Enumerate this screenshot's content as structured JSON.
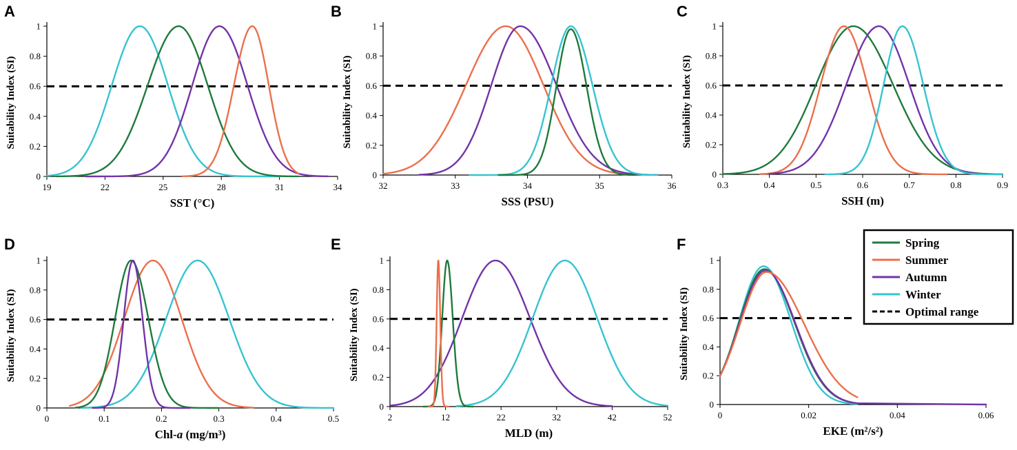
{
  "colors": {
    "Spring": "#1e7a3c",
    "Summer": "#ec6f4a",
    "Autumn": "#7233a8",
    "Winter": "#36c3d0",
    "optimal": "#000000"
  },
  "legend": {
    "items": [
      {
        "key": "Spring",
        "label": "Spring"
      },
      {
        "key": "Summer",
        "label": "Summer"
      },
      {
        "key": "Autumn",
        "label": "Autumn"
      },
      {
        "key": "Winter",
        "label": "Winter"
      },
      {
        "key": "optimal",
        "label": "Optimal range"
      }
    ]
  },
  "chart_data": [
    {
      "type": "line",
      "panel": "A",
      "xlabel": "SST (°C)",
      "ylabel": "Suitability Index (SI)",
      "xlim": [
        19,
        34
      ],
      "ylim": [
        0,
        1
      ],
      "xticks": [
        {
          "v": 19,
          "label": "19"
        },
        {
          "v": 22,
          "label": "22"
        },
        {
          "v": 25,
          "label": "25"
        },
        {
          "v": 28,
          "label": "28"
        },
        {
          "v": 31,
          "label": "31"
        },
        {
          "v": 34,
          "label": "34"
        }
      ],
      "yticks": [
        {
          "v": 0,
          "label": "0"
        },
        {
          "v": 0.2,
          "label": "0.2"
        },
        {
          "v": 0.4,
          "label": "0.4"
        },
        {
          "v": 0.6,
          "label": "0.6"
        },
        {
          "v": 0.8,
          "label": "0.8"
        },
        {
          "v": 1,
          "label": "1"
        }
      ],
      "optimal_si": 0.6,
      "series": [
        {
          "name": "Winter",
          "peak_x": 23.8,
          "peak_y": 1.0,
          "sd_left": 1.45,
          "sd_right": 1.45,
          "x_start": 19,
          "x_end": 31
        },
        {
          "name": "Spring",
          "peak_x": 25.8,
          "peak_y": 1.0,
          "sd_left": 1.6,
          "sd_right": 1.5,
          "x_start": 19.5,
          "x_end": 32
        },
        {
          "name": "Autumn",
          "peak_x": 27.9,
          "peak_y": 1.0,
          "sd_left": 1.4,
          "sd_right": 1.45,
          "x_start": 21,
          "x_end": 33.5
        },
        {
          "name": "Summer",
          "peak_x": 29.6,
          "peak_y": 1.0,
          "sd_left": 0.95,
          "sd_right": 0.85,
          "x_start": 26,
          "x_end": 32
        }
      ]
    },
    {
      "type": "line",
      "panel": "B",
      "xlabel": "SSS (PSU)",
      "ylabel": "Suitability Index (SI)",
      "xlim": [
        32,
        36
      ],
      "ylim": [
        0,
        1
      ],
      "xticks": [
        {
          "v": 32,
          "label": "32"
        },
        {
          "v": 33,
          "label": "33"
        },
        {
          "v": 34,
          "label": "34"
        },
        {
          "v": 35,
          "label": "35"
        },
        {
          "v": 36,
          "label": "36"
        }
      ],
      "yticks": [
        {
          "v": 0,
          "label": "0"
        },
        {
          "v": 0.2,
          "label": "0.2"
        },
        {
          "v": 0.4,
          "label": "0.4"
        },
        {
          "v": 0.6,
          "label": "0.6"
        },
        {
          "v": 0.8,
          "label": "0.8"
        },
        {
          "v": 1,
          "label": "1"
        }
      ],
      "optimal_si": 0.6,
      "series": [
        {
          "name": "Summer",
          "peak_x": 33.7,
          "peak_y": 1.0,
          "sd_left": 0.55,
          "sd_right": 0.52,
          "x_start": 32,
          "x_end": 35.5
        },
        {
          "name": "Autumn",
          "peak_x": 33.9,
          "peak_y": 1.0,
          "sd_left": 0.4,
          "sd_right": 0.5,
          "x_start": 32.5,
          "x_end": 35.8
        },
        {
          "name": "Winter",
          "peak_x": 34.6,
          "peak_y": 1.0,
          "sd_left": 0.27,
          "sd_right": 0.3,
          "x_start": 33.2,
          "x_end": 35.8
        },
        {
          "name": "Spring",
          "peak_x": 34.6,
          "peak_y": 0.98,
          "sd_left": 0.2,
          "sd_right": 0.22,
          "x_start": 33.6,
          "x_end": 35.5
        }
      ]
    },
    {
      "type": "line",
      "panel": "C",
      "xlabel": "SSH (m)",
      "ylabel": "Suitability Index (SI)",
      "xlim": [
        0.3,
        0.9
      ],
      "ylim": [
        0,
        1
      ],
      "xticks": [
        {
          "v": 0.3,
          "label": "0.3"
        },
        {
          "v": 0.4,
          "label": "0.4"
        },
        {
          "v": 0.5,
          "label": "0.5"
        },
        {
          "v": 0.6,
          "label": "0.6"
        },
        {
          "v": 0.7,
          "label": "0.7"
        },
        {
          "v": 0.8,
          "label": "0.8"
        },
        {
          "v": 0.9,
          "label": "0.9"
        }
      ],
      "yticks": [
        {
          "v": 0,
          "label": "0"
        },
        {
          "v": 0.2,
          "label": "0.2"
        },
        {
          "v": 0.4,
          "label": "0.4"
        },
        {
          "v": 0.6,
          "label": "0.6"
        },
        {
          "v": 0.8,
          "label": "0.8"
        },
        {
          "v": 1,
          "label": "1"
        }
      ],
      "optimal_si": 0.6,
      "series": [
        {
          "name": "Spring",
          "peak_x": 0.58,
          "peak_y": 1.0,
          "sd_left": 0.08,
          "sd_right": 0.085,
          "x_start": 0.3,
          "x_end": 0.9
        },
        {
          "name": "Summer",
          "peak_x": 0.56,
          "peak_y": 1.0,
          "sd_left": 0.05,
          "sd_right": 0.05,
          "x_start": 0.38,
          "x_end": 0.78
        },
        {
          "name": "Autumn",
          "peak_x": 0.635,
          "peak_y": 1.0,
          "sd_left": 0.07,
          "sd_right": 0.065,
          "x_start": 0.4,
          "x_end": 0.9
        },
        {
          "name": "Winter",
          "peak_x": 0.685,
          "peak_y": 1.0,
          "sd_left": 0.04,
          "sd_right": 0.045,
          "x_start": 0.52,
          "x_end": 0.9
        }
      ]
    },
    {
      "type": "line",
      "panel": "D",
      "xlabel": "Chl-a (mg/m³)",
      "ylabel": "Suitability Index (SI)",
      "xlim": [
        0,
        0.5
      ],
      "ylim": [
        0,
        1
      ],
      "xticks": [
        {
          "v": 0,
          "label": "0"
        },
        {
          "v": 0.1,
          "label": "0.1"
        },
        {
          "v": 0.2,
          "label": "0.2"
        },
        {
          "v": 0.3,
          "label": "0.3"
        },
        {
          "v": 0.4,
          "label": "0.4"
        },
        {
          "v": 0.5,
          "label": "0.5"
        }
      ],
      "yticks": [
        {
          "v": 0,
          "label": "0"
        },
        {
          "v": 0.2,
          "label": "0.2"
        },
        {
          "v": 0.4,
          "label": "0.4"
        },
        {
          "v": 0.6,
          "label": "0.6"
        },
        {
          "v": 0.8,
          "label": "0.8"
        },
        {
          "v": 1,
          "label": "1"
        }
      ],
      "optimal_si": 0.6,
      "series": [
        {
          "name": "Summer",
          "peak_x": 0.185,
          "peak_y": 1.0,
          "sd_left": 0.05,
          "sd_right": 0.05,
          "x_start": 0.04,
          "x_end": 0.36
        },
        {
          "name": "Winter",
          "peak_x": 0.263,
          "peak_y": 1.0,
          "sd_left": 0.055,
          "sd_right": 0.055,
          "x_start": 0.06,
          "x_end": 0.5
        },
        {
          "name": "Spring",
          "peak_x": 0.147,
          "peak_y": 1.0,
          "sd_left": 0.028,
          "sd_right": 0.03,
          "x_start": 0.05,
          "x_end": 0.3
        },
        {
          "name": "Autumn",
          "peak_x": 0.15,
          "peak_y": 1.0,
          "sd_left": 0.016,
          "sd_right": 0.017,
          "x_start": 0.08,
          "x_end": 0.25
        }
      ]
    },
    {
      "type": "line",
      "panel": "E",
      "xlabel": "MLD (m)",
      "ylabel": "Suitability Index (SI)",
      "xlim": [
        2,
        52
      ],
      "ylim": [
        0,
        1
      ],
      "xticks": [
        {
          "v": 2,
          "label": "2"
        },
        {
          "v": 12,
          "label": "12"
        },
        {
          "v": 22,
          "label": "22"
        },
        {
          "v": 32,
          "label": "32"
        },
        {
          "v": 42,
          "label": "42"
        },
        {
          "v": 52,
          "label": "52"
        }
      ],
      "yticks": [
        {
          "v": 0,
          "label": "0"
        },
        {
          "v": 0.2,
          "label": "0.2"
        },
        {
          "v": 0.4,
          "label": "0.4"
        },
        {
          "v": 0.6,
          "label": "0.6"
        },
        {
          "v": 0.8,
          "label": "0.8"
        },
        {
          "v": 1,
          "label": "1"
        }
      ],
      "optimal_si": 0.6,
      "series": [
        {
          "name": "Autumn",
          "peak_x": 21.0,
          "peak_y": 1.0,
          "sd_left": 6.0,
          "sd_right": 6.2,
          "x_start": 2,
          "x_end": 42
        },
        {
          "name": "Winter",
          "peak_x": 33.5,
          "peak_y": 1.0,
          "sd_left": 5.8,
          "sd_right": 5.8,
          "x_start": 14,
          "x_end": 52
        },
        {
          "name": "Spring",
          "peak_x": 12.3,
          "peak_y": 1.0,
          "sd_left": 0.9,
          "sd_right": 1.0,
          "x_start": 8,
          "x_end": 17
        },
        {
          "name": "Summer",
          "peak_x": 10.7,
          "peak_y": 1.0,
          "sd_left": 0.3,
          "sd_right": 0.35,
          "x_start": 9,
          "x_end": 12.5
        }
      ]
    },
    {
      "type": "line",
      "panel": "F",
      "xlabel": "EKE (m²/s²)",
      "ylabel": "Suitability Index (SI)",
      "xlim": [
        0,
        0.06
      ],
      "ylim": [
        0,
        1
      ],
      "xticks": [
        {
          "v": 0,
          "label": "0"
        },
        {
          "v": 0.02,
          "label": "0.02"
        },
        {
          "v": 0.04,
          "label": "0.04"
        },
        {
          "v": 0.06,
          "label": "0.06"
        }
      ],
      "yticks": [
        {
          "v": 0,
          "label": "0"
        },
        {
          "v": 0.2,
          "label": "0.2"
        },
        {
          "v": 0.4,
          "label": "0.4"
        },
        {
          "v": 0.6,
          "label": "0.6"
        },
        {
          "v": 0.8,
          "label": "0.8"
        },
        {
          "v": 1,
          "label": "1"
        }
      ],
      "optimal_si": 0.6,
      "optimal_line_end": 0.03,
      "series": [
        {
          "name": "Winter",
          "peak_x": 0.0098,
          "peak_y": 0.96,
          "sd_left": 0.0055,
          "sd_right": 0.0062,
          "x_start": 0,
          "x_end": 0.031
        },
        {
          "name": "Spring",
          "peak_x": 0.01,
          "peak_y": 0.94,
          "sd_left": 0.0057,
          "sd_right": 0.0068,
          "x_start": 0,
          "x_end": 0.031
        },
        {
          "name": "Autumn",
          "peak_x": 0.0102,
          "peak_y": 0.93,
          "sd_left": 0.0058,
          "sd_right": 0.0068,
          "x_start": 0,
          "x_end": 0.031,
          "tail_x": 0.06
        },
        {
          "name": "Summer",
          "peak_x": 0.0105,
          "peak_y": 0.92,
          "sd_left": 0.006,
          "sd_right": 0.0085,
          "x_start": 0,
          "x_end": 0.031
        }
      ]
    }
  ]
}
